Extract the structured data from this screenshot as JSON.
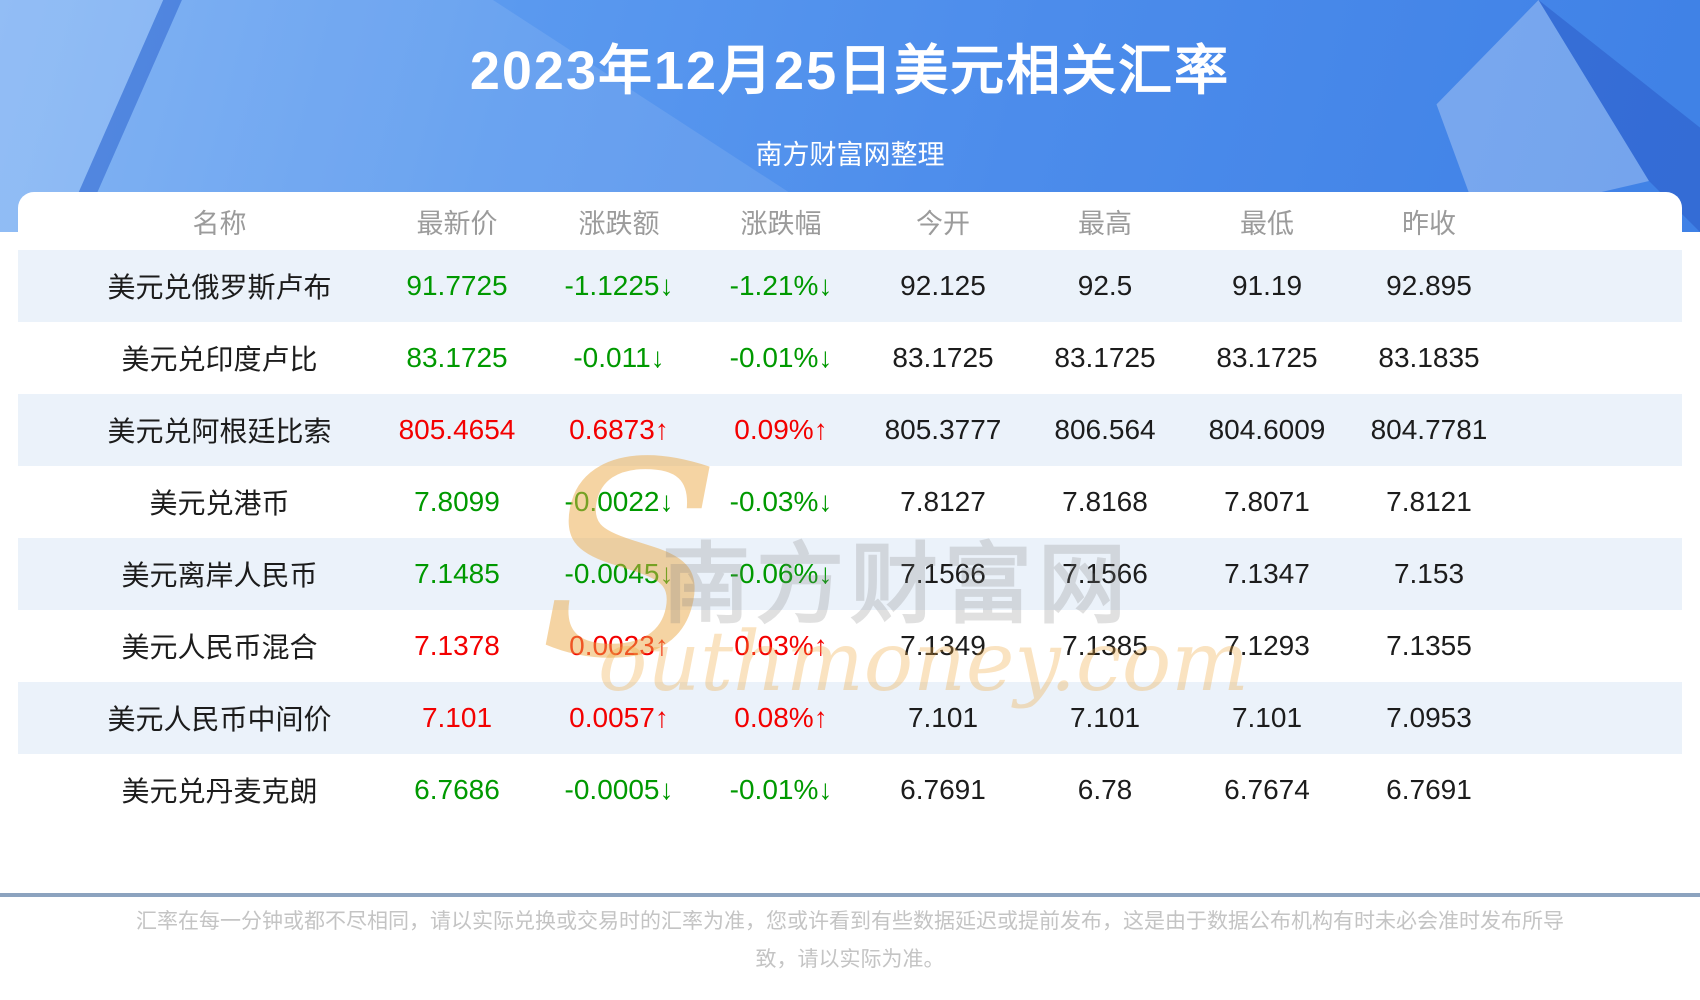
{
  "header": {
    "title": "2023年12月25日美元相关汇率",
    "subtitle": "南方财富网整理"
  },
  "table": {
    "columns": [
      "名称",
      "最新价",
      "涨跌额",
      "涨跌幅",
      "今开",
      "最高",
      "最低",
      "昨收"
    ],
    "rows": [
      {
        "name": "美元兑俄罗斯卢布",
        "latest": "91.7725",
        "change": "-1.1225↓",
        "change_pct": "-1.21%↓",
        "open": "92.125",
        "high": "92.5",
        "low": "91.19",
        "prev_close": "92.895",
        "direction": "down"
      },
      {
        "name": "美元兑印度卢比",
        "latest": "83.1725",
        "change": "-0.011↓",
        "change_pct": "-0.01%↓",
        "open": "83.1725",
        "high": "83.1725",
        "low": "83.1725",
        "prev_close": "83.1835",
        "direction": "down"
      },
      {
        "name": "美元兑阿根廷比索",
        "latest": "805.4654",
        "change": "0.6873↑",
        "change_pct": "0.09%↑",
        "open": "805.3777",
        "high": "806.564",
        "low": "804.6009",
        "prev_close": "804.7781",
        "direction": "up"
      },
      {
        "name": "美元兑港币",
        "latest": "7.8099",
        "change": "-0.0022↓",
        "change_pct": "-0.03%↓",
        "open": "7.8127",
        "high": "7.8168",
        "low": "7.8071",
        "prev_close": "7.8121",
        "direction": "down"
      },
      {
        "name": "美元离岸人民币",
        "latest": "7.1485",
        "change": "-0.0045↓",
        "change_pct": "-0.06%↓",
        "open": "7.1566",
        "high": "7.1566",
        "low": "7.1347",
        "prev_close": "7.153",
        "direction": "down"
      },
      {
        "name": "美元人民币混合",
        "latest": "7.1378",
        "change": "0.0023↑",
        "change_pct": "0.03%↑",
        "open": "7.1349",
        "high": "7.1385",
        "low": "7.1293",
        "prev_close": "7.1355",
        "direction": "up"
      },
      {
        "name": "美元人民币中间价",
        "latest": "7.101",
        "change": "0.0057↑",
        "change_pct": "0.08%↑",
        "open": "7.101",
        "high": "7.101",
        "low": "7.101",
        "prev_close": "7.0953",
        "direction": "up"
      },
      {
        "name": "美元兑丹麦克朗",
        "latest": "6.7686",
        "change": "-0.0005↓",
        "change_pct": "-0.01%↓",
        "open": "6.7691",
        "high": "6.78",
        "low": "6.7674",
        "prev_close": "6.7691",
        "direction": "down"
      }
    ]
  },
  "watermark": {
    "brand_en_initial": "S",
    "brand_cn": "南方财富网",
    "brand_en_rest": "outhmoney.com"
  },
  "footer": {
    "disclaimer": "汇率在每一分钟或都不尽相同，请以实际兑换或交易时的汇率为准，您或许看到有些数据延迟或提前发布，这是由于数据公布机构有时未必会准时发布所导致，请以实际为准。"
  },
  "colors": {
    "up_red": "#f30000",
    "down_green": "#009900",
    "banner_blue": "#4c8ceb",
    "stripe_blue": "#ebf2fa",
    "divider_blue_gray": "#8ca3bf"
  }
}
